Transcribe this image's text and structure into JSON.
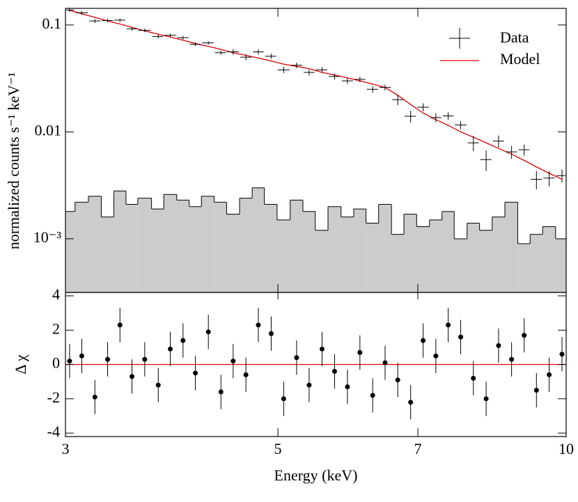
{
  "chart_data": [
    {
      "type": "line",
      "ylabel": "normalized counts s⁻¹ keV⁻¹",
      "xscale": "log",
      "yscale": "log",
      "xlim": [
        3,
        10
      ],
      "ylim": [
        0.000315,
        0.143
      ],
      "yticks": [
        0.1,
        0.01,
        {
          "value": 0.001,
          "label": "10⁻³"
        }
      ],
      "legend": "upper right",
      "x": [
        3.03,
        3.12,
        3.22,
        3.32,
        3.42,
        3.52,
        3.63,
        3.75,
        3.86,
        3.98,
        4.1,
        4.23,
        4.36,
        4.49,
        4.63,
        4.77,
        4.92,
        5.07,
        5.23,
        5.39,
        5.56,
        5.73,
        5.91,
        6.09,
        6.28,
        6.47,
        6.67,
        6.88,
        7.09,
        7.31,
        7.53,
        7.76,
        8.0,
        8.25,
        8.5,
        8.77,
        9.04,
        9.31,
        9.6,
        9.9
      ],
      "bins": [
        3.0,
        3.07,
        3.17,
        3.27,
        3.37,
        3.47,
        3.57,
        3.69,
        3.8,
        3.92,
        4.04,
        4.16,
        4.29,
        4.42,
        4.56,
        4.7,
        4.84,
        4.99,
        5.15,
        5.31,
        5.47,
        5.64,
        5.82,
        6.0,
        6.18,
        6.37,
        6.57,
        6.77,
        6.98,
        7.2,
        7.42,
        7.64,
        7.88,
        8.12,
        8.37,
        8.63,
        8.9,
        9.17,
        9.45,
        9.75,
        10.0
      ],
      "series": [
        {
          "name": "Data",
          "color": "#000000",
          "values": [
            0.138,
            0.13,
            0.109,
            0.11,
            0.111,
            0.092,
            0.089,
            0.078,
            0.08,
            0.076,
            0.066,
            0.068,
            0.055,
            0.056,
            0.05,
            0.056,
            0.051,
            0.038,
            0.042,
            0.036,
            0.038,
            0.033,
            0.03,
            0.031,
            0.025,
            0.026,
            0.02,
            0.014,
            0.017,
            0.0136,
            0.0141,
            0.0116,
            0.0079,
            0.0055,
            0.0082,
            0.0065,
            0.0068,
            0.0036,
            0.0037,
            0.0039
          ],
          "errors": [
            0.0055,
            0.0051,
            0.0047,
            0.0044,
            0.0041,
            0.0038,
            0.0035,
            0.0033,
            0.0031,
            0.0029,
            0.0027,
            0.0025,
            0.0024,
            0.0033,
            0.0031,
            0.0029,
            0.0028,
            0.0026,
            0.0025,
            0.0023,
            0.0022,
            0.002,
            0.0019,
            0.0018,
            0.0017,
            0.0016,
            0.0022,
            0.0018,
            0.0015,
            0.0013,
            0.00115,
            0.001,
            0.0013,
            0.0012,
            0.00105,
            0.0009,
            0.0008,
            0.0007,
            0.0006,
            0.00054
          ]
        },
        {
          "name": "Model",
          "color": "#e00000",
          "values": [
            0.137,
            0.127,
            0.118,
            0.109,
            0.102,
            0.095,
            0.088,
            0.082,
            0.077,
            0.072,
            0.067,
            0.063,
            0.059,
            0.055,
            0.052,
            0.049,
            0.046,
            0.043,
            0.041,
            0.039,
            0.036,
            0.034,
            0.032,
            0.03,
            0.028,
            0.026,
            0.022,
            0.018,
            0.015,
            0.013,
            0.0115,
            0.01,
            0.0089,
            0.0079,
            0.007,
            0.0062,
            0.0054,
            0.0047,
            0.0041,
            0.0036
          ]
        }
      ],
      "background": {
        "color": "#cccccc",
        "values": [
          0.0018,
          0.0022,
          0.0025,
          0.0016,
          0.0028,
          0.0021,
          0.0024,
          0.0019,
          0.0026,
          0.0023,
          0.002,
          0.0025,
          0.0022,
          0.0017,
          0.0024,
          0.003,
          0.0021,
          0.0015,
          0.0023,
          0.0018,
          0.0012,
          0.002,
          0.0016,
          0.0019,
          0.0014,
          0.0021,
          0.0011,
          0.0017,
          0.0013,
          0.0015,
          0.0018,
          0.001,
          0.0014,
          0.0012,
          0.0016,
          0.0022,
          0.0009,
          0.0011,
          0.0013,
          0.001
        ]
      }
    },
    {
      "type": "scatter",
      "xlabel": "Energy (keV)",
      "ylabel": "Δ χ",
      "xscale": "log",
      "xlim": [
        3,
        10
      ],
      "ylim": [
        -4.2,
        4.2
      ],
      "xticks": [
        3,
        5,
        7,
        10
      ],
      "yticks": [
        -4,
        -2,
        0,
        2,
        4
      ],
      "x": [
        3.03,
        3.12,
        3.22,
        3.32,
        3.42,
        3.52,
        3.63,
        3.75,
        3.86,
        3.98,
        4.1,
        4.23,
        4.36,
        4.49,
        4.63,
        4.77,
        4.92,
        5.07,
        5.23,
        5.39,
        5.56,
        5.73,
        5.91,
        6.09,
        6.28,
        6.47,
        6.67,
        6.88,
        7.09,
        7.31,
        7.53,
        7.76,
        8.0,
        8.25,
        8.5,
        8.77,
        9.04,
        9.31,
        9.6,
        9.9
      ],
      "values": [
        0.2,
        0.5,
        -1.9,
        0.3,
        2.3,
        -0.7,
        0.3,
        -1.2,
        0.9,
        1.4,
        -0.5,
        1.9,
        -1.6,
        0.2,
        -0.6,
        2.3,
        1.8,
        -2.0,
        0.4,
        -1.2,
        0.9,
        -0.4,
        -1.3,
        0.7,
        -1.8,
        0.1,
        -0.9,
        -2.2,
        1.4,
        0.5,
        2.3,
        1.6,
        -0.8,
        -2.0,
        1.1,
        0.3,
        1.7,
        -1.5,
        -0.6,
        0.6
      ],
      "error": 1,
      "color": "#000000",
      "reference_line": {
        "value": 0,
        "color": "#e00000"
      }
    }
  ]
}
